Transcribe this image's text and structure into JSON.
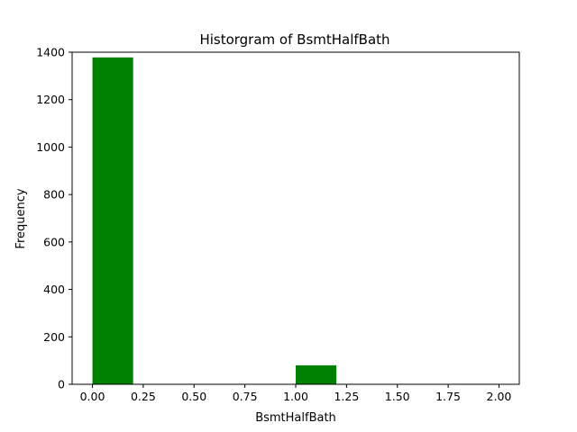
{
  "chart_data": {
    "type": "bar",
    "title": "Historgram of BsmtHalfBath",
    "xlabel": "BsmtHalfBath",
    "ylabel": "Frequency",
    "bins": [
      {
        "x0": 0.0,
        "x1": 0.2,
        "count": 1378
      },
      {
        "x0": 0.2,
        "x1": 0.4,
        "count": 0
      },
      {
        "x0": 0.4,
        "x1": 0.6,
        "count": 0
      },
      {
        "x0": 0.6,
        "x1": 0.8,
        "count": 0
      },
      {
        "x0": 0.8,
        "x1": 1.0,
        "count": 0
      },
      {
        "x0": 1.0,
        "x1": 1.2,
        "count": 80
      },
      {
        "x0": 1.2,
        "x1": 1.4,
        "count": 0
      },
      {
        "x0": 1.4,
        "x1": 1.6,
        "count": 0
      },
      {
        "x0": 1.6,
        "x1": 1.8,
        "count": 0
      },
      {
        "x0": 1.8,
        "x1": 2.0,
        "count": 2
      }
    ],
    "xlim": [
      -0.1,
      2.1
    ],
    "ylim": [
      0,
      1400
    ],
    "xticks": [
      "0.00",
      "0.25",
      "0.50",
      "0.75",
      "1.00",
      "1.25",
      "1.50",
      "1.75",
      "2.00"
    ],
    "yticks": [
      "0",
      "200",
      "400",
      "600",
      "800",
      "1000",
      "1200",
      "1400"
    ],
    "bar_color": "#008000",
    "grid": false
  }
}
